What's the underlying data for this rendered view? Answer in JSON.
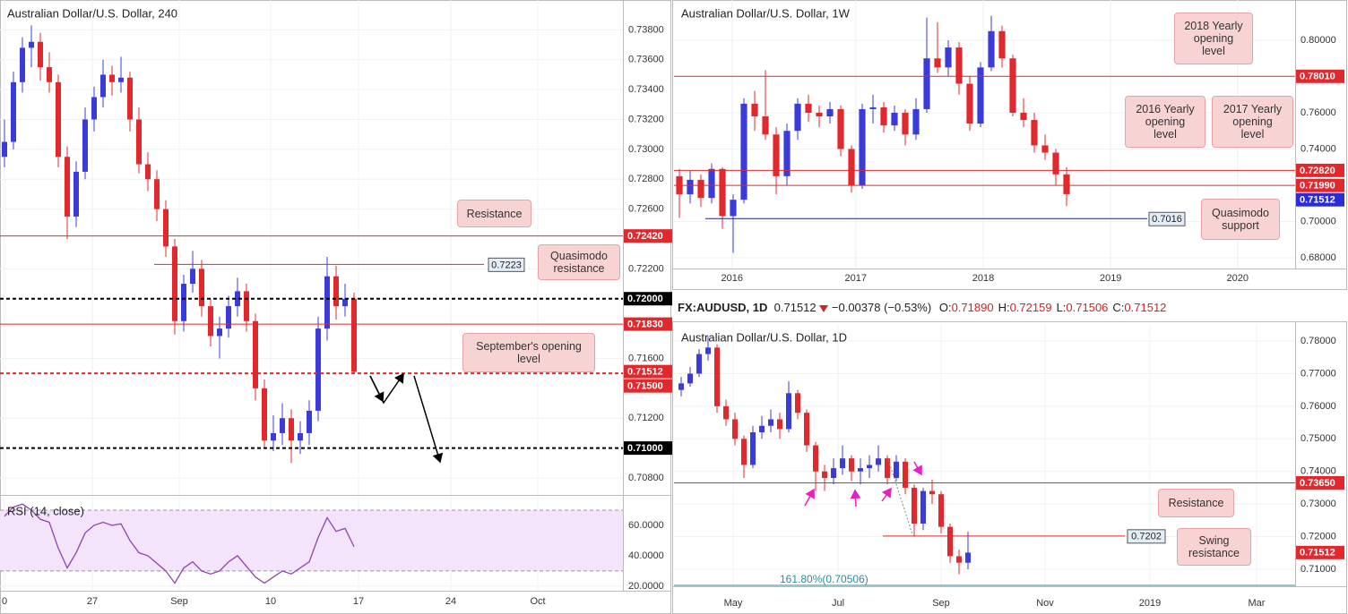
{
  "header": {
    "symbol": "FX:AUDUSD, 1D",
    "last": "0.71512",
    "change": "−0.00378 (−0.53%)",
    "items": [
      {
        "k": "O:",
        "v": "0.71890"
      },
      {
        "k": "H:",
        "v": "0.72159"
      },
      {
        "k": "L:",
        "v": "0.71506"
      },
      {
        "k": "C:",
        "v": "0.71512"
      }
    ]
  },
  "chart_data": [
    {
      "type": "candlestick",
      "title": "Australian Dollar/U.S. Dollar, 240",
      "up_color": "#3b3bd9",
      "down_color": "#e0282d",
      "grid": true,
      "xlim": [
        -0.5,
        69
      ],
      "xticks": [
        0,
        {
          "value": 9.8,
          "label": "27"
        },
        {
          "value": 19.5,
          "label": "Sep"
        },
        {
          "value": 29.7,
          "label": "10"
        },
        {
          "value": 39.5,
          "label": "17"
        },
        {
          "value": 49.8,
          "label": "24"
        },
        {
          "value": 59.5,
          "label": "Oct"
        }
      ],
      "ylim": [
        0.70686,
        0.74
      ],
      "yticks": [
        {
          "value": 0.738,
          "label": "0.73800"
        },
        {
          "value": 0.736,
          "label": "0.73600"
        },
        {
          "value": 0.734,
          "label": "0.73400"
        },
        {
          "value": 0.732,
          "label": "0.73200"
        },
        {
          "value": 0.73,
          "label": "0.73000"
        },
        {
          "value": 0.728,
          "label": "0.72800"
        },
        {
          "value": 0.726,
          "label": "0.72600"
        },
        {
          "value": 0.722,
          "label": "0.72200"
        },
        {
          "value": 0.716,
          "label": "0.71600"
        },
        {
          "value": 0.712,
          "label": "0.71200"
        },
        {
          "value": 0.708,
          "label": "0.70800"
        }
      ],
      "ohlc": [
        [
          0.7295,
          0.732,
          0.7288,
          0.7305
        ],
        [
          0.7305,
          0.7352,
          0.73,
          0.7345
        ],
        [
          0.7345,
          0.7375,
          0.7338,
          0.7368
        ],
        [
          0.7368,
          0.7383,
          0.7355,
          0.7372
        ],
        [
          0.7372,
          0.7378,
          0.7346,
          0.7355
        ],
        [
          0.7355,
          0.7365,
          0.7338,
          0.7345
        ],
        [
          0.7345,
          0.735,
          0.7288,
          0.7295
        ],
        [
          0.7295,
          0.7302,
          0.724,
          0.7255
        ],
        [
          0.7255,
          0.7292,
          0.7248,
          0.7285
        ],
        [
          0.7285,
          0.7328,
          0.728,
          0.732
        ],
        [
          0.732,
          0.7342,
          0.7312,
          0.7335
        ],
        [
          0.7335,
          0.736,
          0.7328,
          0.735
        ],
        [
          0.735,
          0.7356,
          0.7336,
          0.7345
        ],
        [
          0.7345,
          0.7362,
          0.7338,
          0.7348
        ],
        [
          0.7348,
          0.7352,
          0.7312,
          0.732
        ],
        [
          0.732,
          0.7328,
          0.7284,
          0.729
        ],
        [
          0.729,
          0.7298,
          0.7272,
          0.728
        ],
        [
          0.728,
          0.7286,
          0.7252,
          0.726
        ],
        [
          0.726,
          0.7266,
          0.7228,
          0.7235
        ],
        [
          0.7235,
          0.724,
          0.7176,
          0.7185
        ],
        [
          0.7185,
          0.7216,
          0.7178,
          0.721
        ],
        [
          0.721,
          0.7232,
          0.7204,
          0.722
        ],
        [
          0.722,
          0.7226,
          0.7188,
          0.7195
        ],
        [
          0.7195,
          0.72,
          0.7168,
          0.7175
        ],
        [
          0.7175,
          0.7188,
          0.716,
          0.718
        ],
        [
          0.718,
          0.7202,
          0.7174,
          0.7195
        ],
        [
          0.7195,
          0.7214,
          0.7188,
          0.7205
        ],
        [
          0.7205,
          0.721,
          0.7178,
          0.7185
        ],
        [
          0.7185,
          0.719,
          0.7132,
          0.714
        ],
        [
          0.714,
          0.7146,
          0.71,
          0.7105
        ],
        [
          0.7105,
          0.7122,
          0.7098,
          0.711
        ],
        [
          0.711,
          0.713,
          0.7102,
          0.712
        ],
        [
          0.712,
          0.7126,
          0.709,
          0.7105
        ],
        [
          0.7105,
          0.7118,
          0.7096,
          0.711
        ],
        [
          0.711,
          0.7132,
          0.7102,
          0.7125
        ],
        [
          0.7125,
          0.7188,
          0.7118,
          0.718
        ],
        [
          0.718,
          0.7228,
          0.7172,
          0.7215
        ],
        [
          0.7215,
          0.7222,
          0.7186,
          0.7195
        ],
        [
          0.7195,
          0.721,
          0.7188,
          0.72
        ],
        [
          0.72,
          0.7204,
          0.715,
          0.7151
        ]
      ],
      "levels": [
        {
          "value": 0.7242,
          "label": "0.72420",
          "color": "#e0282d",
          "style": "solid",
          "tag": "axis"
        },
        {
          "value": 0.7223,
          "label": "0.7223",
          "color": "#e0282d",
          "style": "solid",
          "tag": "inline"
        },
        {
          "value": 0.72,
          "label": "0.72000",
          "color": "#000000",
          "style": "dashed",
          "tag": "axis"
        },
        {
          "value": 0.7183,
          "label": "0.71830",
          "color": "#e0282d",
          "style": "solid",
          "tag": "axis"
        },
        {
          "value": 0.71512,
          "label": "0.71512",
          "color": "#e0282d",
          "style": "none",
          "tag": "axis"
        },
        {
          "value": 0.715,
          "label": "0.71500",
          "color": "#e0282d",
          "style": "dashed",
          "tag": "axis"
        },
        {
          "value": 0.71,
          "label": "0.71000",
          "color": "#000000",
          "style": "dashed",
          "tag": "axis"
        }
      ],
      "annotations": [
        "Resistance",
        "Quasimodo resistance",
        "September's opening level"
      ]
    },
    {
      "type": "line",
      "title": "RSI (14, close)",
      "color": "#8e44ad",
      "band_color": "#f3e3fb",
      "bands": [
        30,
        70
      ],
      "ylim": [
        17,
        78.8
      ],
      "yticks": [
        {
          "value": 60,
          "label": "60.0000"
        },
        {
          "value": 40,
          "label": "40.0000"
        },
        {
          "value": 20,
          "label": "20.0000"
        }
      ],
      "values": [
        66,
        72,
        74,
        70,
        64,
        62,
        45,
        32,
        42,
        55,
        60,
        62,
        60,
        61,
        50,
        42,
        40,
        35,
        30,
        22,
        32,
        36,
        30,
        28,
        30,
        36,
        40,
        33,
        26,
        22,
        26,
        30,
        28,
        32,
        36,
        52,
        65,
        56,
        58,
        46
      ]
    },
    {
      "type": "candlestick",
      "title": "Australian Dollar/U.S. Dollar, 1W",
      "up_color": "#3b3bd9",
      "down_color": "#e0282d",
      "grid": true,
      "xlim": [
        -0.5,
        57.25
      ],
      "xticks": [
        {
          "value": 4.9,
          "label": "2016"
        },
        {
          "value": 16.4,
          "label": "2017"
        },
        {
          "value": 28.25,
          "label": "2018"
        },
        {
          "value": 40.1,
          "label": "2019"
        },
        {
          "value": 51.9,
          "label": "2020"
        }
      ],
      "ylim": [
        0.67407,
        0.8222
      ],
      "yticks": [
        {
          "value": 0.8,
          "label": "0.80000"
        },
        {
          "value": 0.76,
          "label": "0.76000"
        },
        {
          "value": 0.74,
          "label": "0.74000"
        },
        {
          "value": 0.7,
          "label": "0.70000"
        },
        {
          "value": 0.68,
          "label": "0.68000"
        }
      ],
      "ohlc": [
        [
          0.725,
          0.729,
          0.702,
          0.715
        ],
        [
          0.715,
          0.728,
          0.71,
          0.723
        ],
        [
          0.723,
          0.726,
          0.708,
          0.713
        ],
        [
          0.713,
          0.732,
          0.71,
          0.729
        ],
        [
          0.729,
          0.73,
          0.696,
          0.703
        ],
        [
          0.703,
          0.715,
          0.6827,
          0.712
        ],
        [
          0.712,
          0.768,
          0.71,
          0.765
        ],
        [
          0.765,
          0.772,
          0.75,
          0.758
        ],
        [
          0.758,
          0.7835,
          0.745,
          0.748
        ],
        [
          0.748,
          0.752,
          0.715,
          0.725
        ],
        [
          0.725,
          0.754,
          0.72,
          0.75
        ],
        [
          0.75,
          0.768,
          0.745,
          0.765
        ],
        [
          0.765,
          0.77,
          0.755,
          0.76
        ],
        [
          0.76,
          0.764,
          0.752,
          0.758
        ],
        [
          0.758,
          0.766,
          0.754,
          0.762
        ],
        [
          0.762,
          0.764,
          0.736,
          0.74
        ],
        [
          0.74,
          0.742,
          0.716,
          0.72
        ],
        [
          0.72,
          0.765,
          0.718,
          0.762
        ],
        [
          0.762,
          0.77,
          0.754,
          0.763
        ],
        [
          0.763,
          0.766,
          0.749,
          0.753
        ],
        [
          0.753,
          0.764,
          0.75,
          0.76
        ],
        [
          0.76,
          0.762,
          0.742,
          0.748
        ],
        [
          0.748,
          0.768,
          0.745,
          0.762
        ],
        [
          0.762,
          0.8125,
          0.76,
          0.79
        ],
        [
          0.79,
          0.81,
          0.782,
          0.785
        ],
        [
          0.785,
          0.8,
          0.78,
          0.796
        ],
        [
          0.796,
          0.799,
          0.77,
          0.776
        ],
        [
          0.776,
          0.78,
          0.75,
          0.754
        ],
        [
          0.754,
          0.788,
          0.752,
          0.785
        ],
        [
          0.785,
          0.8135,
          0.783,
          0.805
        ],
        [
          0.805,
          0.808,
          0.785,
          0.79
        ],
        [
          0.79,
          0.792,
          0.758,
          0.76
        ],
        [
          0.76,
          0.768,
          0.752,
          0.756
        ],
        [
          0.756,
          0.76,
          0.738,
          0.742
        ],
        [
          0.742,
          0.748,
          0.734,
          0.738
        ],
        [
          0.738,
          0.74,
          0.72,
          0.726
        ],
        [
          0.726,
          0.73,
          0.7085,
          0.7151
        ]
      ],
      "levels": [
        {
          "value": 0.7801,
          "label": "0.78010",
          "color": "#e0282d",
          "style": "solid",
          "tag": "axis"
        },
        {
          "value": 0.7282,
          "label": "0.72820",
          "color": "#e0282d",
          "style": "solid",
          "tag": "axis"
        },
        {
          "value": 0.7199,
          "label": "0.71990",
          "color": "#e0282d",
          "style": "solid",
          "tag": "axis"
        },
        {
          "value": 0.71512,
          "label": "0.71512",
          "color": "#2b2bd9",
          "style": "none",
          "tag": "axis"
        },
        {
          "value": 0.7016,
          "label": "0.7016",
          "color": "#1a237e",
          "style": "solid",
          "tag": "inline"
        }
      ],
      "annotations": [
        "2018 Yearly opening level",
        "2016 Yearly opening level",
        "2017 Yearly opening level",
        "Quasimodo support"
      ]
    },
    {
      "type": "candlestick",
      "title": "Australian Dollar/U.S. Dollar, 1D",
      "up_color": "#3b3bd9",
      "down_color": "#e0282d",
      "grid": true,
      "xlim": [
        -0.8,
        68.5
      ],
      "xticks": [
        {
          "value": 5.8,
          "label": "May"
        },
        {
          "value": 17.5,
          "label": "Jul"
        },
        {
          "value": 29,
          "label": "Sep"
        },
        {
          "value": 40.6,
          "label": "Nov"
        },
        {
          "value": 52.3,
          "label": "2019"
        },
        {
          "value": 64.2,
          "label": "Mar"
        }
      ],
      "ylim": [
        0.70478,
        0.78522
      ],
      "yticks": [
        {
          "value": 0.78,
          "label": "0.78000"
        },
        {
          "value": 0.77,
          "label": "0.77000"
        },
        {
          "value": 0.76,
          "label": "0.76000"
        },
        {
          "value": 0.75,
          "label": "0.75000"
        },
        {
          "value": 0.74,
          "label": "0.74000"
        },
        {
          "value": 0.73,
          "label": "0.73000"
        },
        {
          "value": 0.72,
          "label": "0.72000"
        },
        {
          "value": 0.71,
          "label": "0.71000"
        }
      ],
      "ohlc": [
        [
          0.765,
          0.769,
          0.763,
          0.767
        ],
        [
          0.767,
          0.772,
          0.766,
          0.77
        ],
        [
          0.77,
          0.7775,
          0.769,
          0.776
        ],
        [
          0.776,
          0.7813,
          0.774,
          0.778
        ],
        [
          0.778,
          0.779,
          0.758,
          0.76
        ],
        [
          0.76,
          0.762,
          0.754,
          0.756
        ],
        [
          0.756,
          0.758,
          0.748,
          0.75
        ],
        [
          0.75,
          0.751,
          0.738,
          0.742
        ],
        [
          0.742,
          0.754,
          0.741,
          0.752
        ],
        [
          0.752,
          0.757,
          0.75,
          0.754
        ],
        [
          0.754,
          0.759,
          0.752,
          0.756
        ],
        [
          0.756,
          0.758,
          0.75,
          0.753
        ],
        [
          0.753,
          0.7677,
          0.752,
          0.764
        ],
        [
          0.764,
          0.765,
          0.756,
          0.758
        ],
        [
          0.758,
          0.759,
          0.746,
          0.748
        ],
        [
          0.748,
          0.749,
          0.734,
          0.74
        ],
        [
          0.74,
          0.742,
          0.734,
          0.738
        ],
        [
          0.738,
          0.744,
          0.736,
          0.741
        ],
        [
          0.741,
          0.748,
          0.739,
          0.744
        ],
        [
          0.744,
          0.745,
          0.737,
          0.74
        ],
        [
          0.74,
          0.744,
          0.736,
          0.741
        ],
        [
          0.741,
          0.745,
          0.738,
          0.742
        ],
        [
          0.742,
          0.748,
          0.74,
          0.744
        ],
        [
          0.744,
          0.745,
          0.736,
          0.738
        ],
        [
          0.738,
          0.745,
          0.737,
          0.743
        ],
        [
          0.743,
          0.744,
          0.733,
          0.735
        ],
        [
          0.735,
          0.736,
          0.72,
          0.724
        ],
        [
          0.724,
          0.735,
          0.722,
          0.734
        ],
        [
          0.734,
          0.7375,
          0.73,
          0.733
        ],
        [
          0.733,
          0.734,
          0.721,
          0.723
        ],
        [
          0.723,
          0.724,
          0.712,
          0.714
        ],
        [
          0.714,
          0.716,
          0.7085,
          0.712
        ],
        [
          0.712,
          0.7215,
          0.71,
          0.7151
        ]
      ],
      "levels": [
        {
          "value": 0.7365,
          "label": "0.73650",
          "color": "#e0282d",
          "style": "solid",
          "tag": "axis"
        },
        {
          "value": 0.7202,
          "label": "0.7202",
          "color": "#e0282d",
          "style": "solid",
          "tag": "inline"
        },
        {
          "value": 0.71512,
          "label": "0.71512",
          "color": "#e0282d",
          "style": "none",
          "tag": "axis"
        },
        {
          "value": 0.70506,
          "label": "161.80%(0.70506)",
          "color": "#2e8b9a",
          "style": "solid",
          "tag": "text"
        }
      ],
      "annotations": [
        "Resistance",
        "Swing resistance"
      ]
    }
  ]
}
